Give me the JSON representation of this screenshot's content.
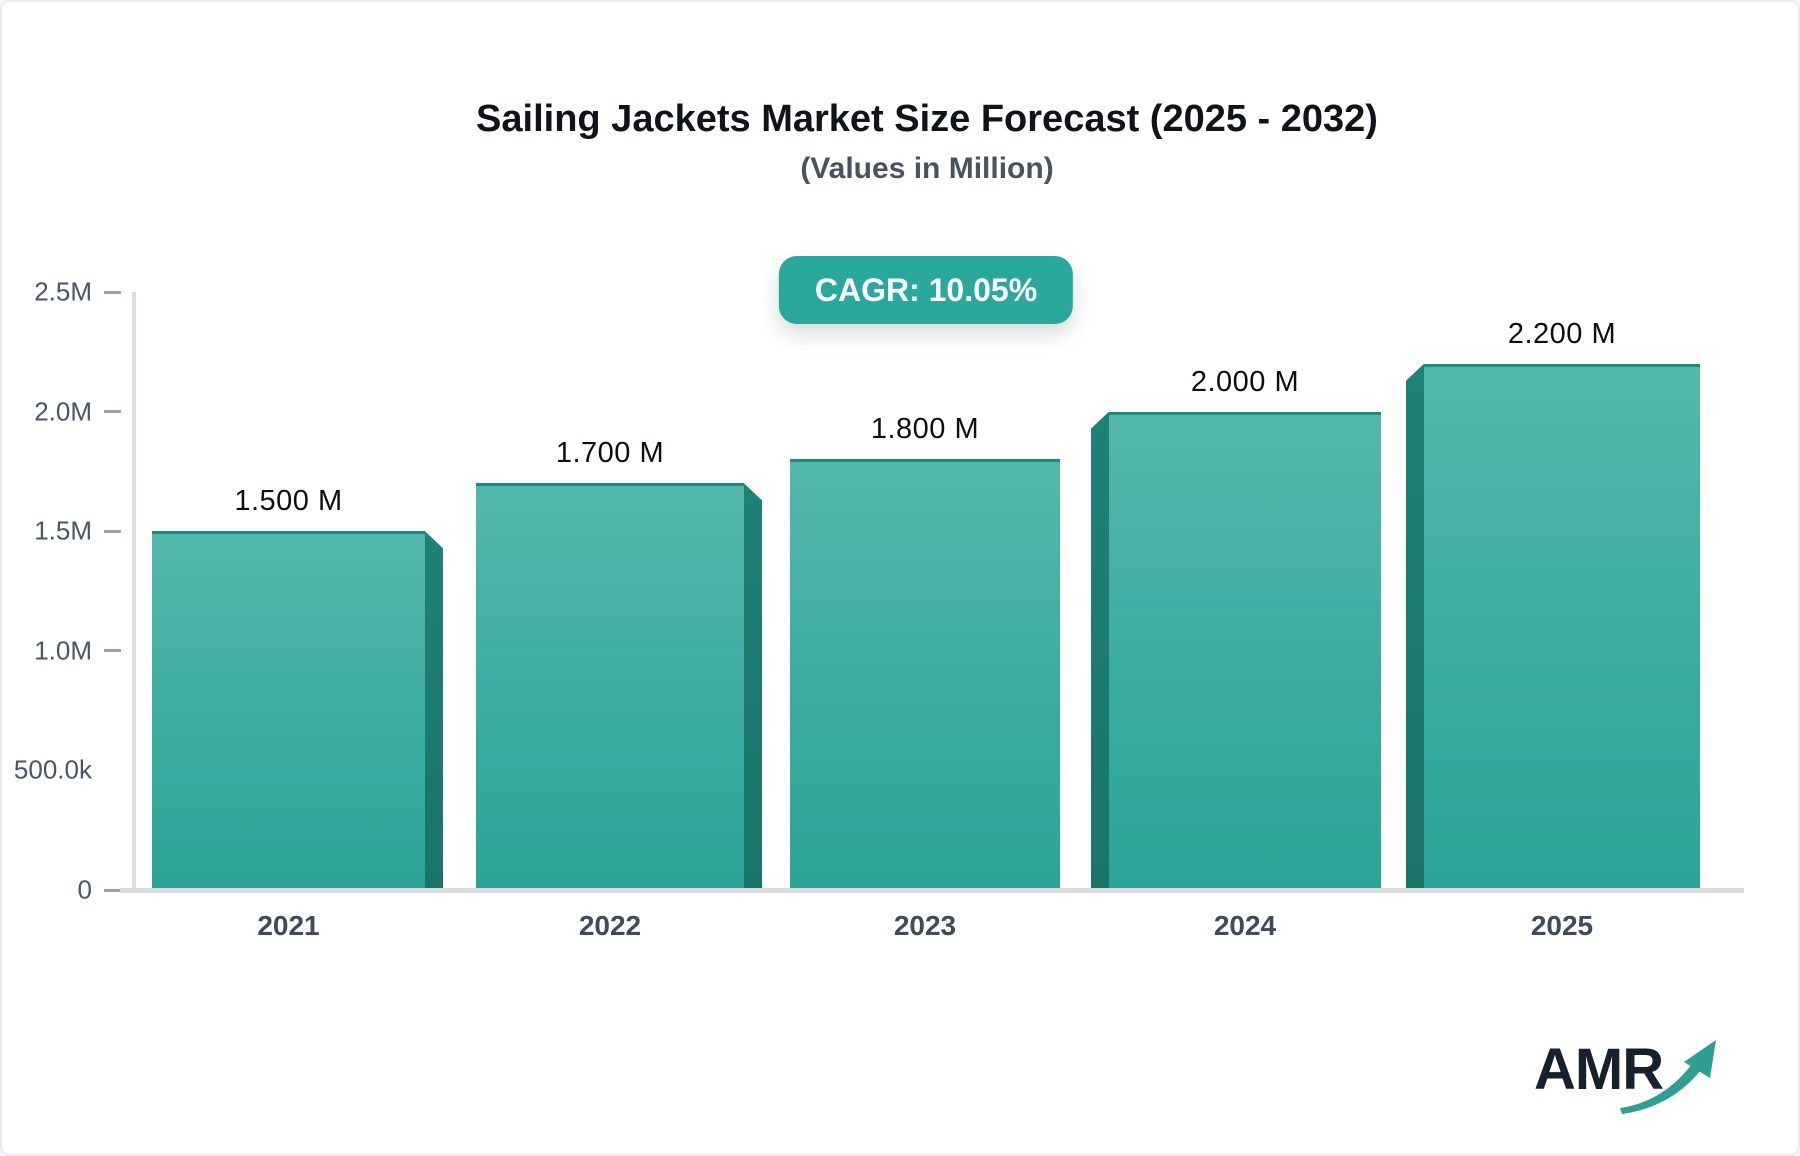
{
  "header": {
    "title": "Sailing Jackets Market Size Forecast (2025 - 2032)",
    "subtitle": "(Values in Million)",
    "cagr_badge": "CAGR: 10.05%"
  },
  "chart_data": {
    "type": "bar",
    "title": "Sailing Jackets Market Size Forecast (2025 - 2032)",
    "subtitle": "(Values in Million)",
    "cagr": "10.05%",
    "categories": [
      "2021",
      "2022",
      "2023",
      "2024",
      "2025"
    ],
    "values": [
      1.5,
      1.7,
      1.8,
      2.0,
      2.2
    ],
    "value_labels": [
      "1.500 M",
      "1.700 M",
      "1.800 M",
      "2.000 M",
      "2.200 M"
    ],
    "unit": "Million",
    "ylim": [
      0,
      2.5
    ],
    "yticks": [
      {
        "label": "2.5M",
        "value": 2.5,
        "dash": true
      },
      {
        "label": "2.0M",
        "value": 2.0,
        "dash": true
      },
      {
        "label": "1.5M",
        "value": 1.5,
        "dash": true
      },
      {
        "label": "1.0M",
        "value": 1.0,
        "dash": true
      },
      {
        "label": "500.0k",
        "value": 0.5,
        "dash": false
      },
      {
        "label": "0",
        "value": 0.0,
        "dash": true
      }
    ],
    "grid": false,
    "legend": false,
    "bar_3d_sides": [
      "right",
      "right",
      "none",
      "left",
      "left"
    ]
  },
  "branding": {
    "logo_text": "AMR"
  },
  "colors": {
    "badge_bg": "#2aa89b",
    "bar_top": "#55b7ab",
    "bar_bottom": "#2aa496",
    "bar_side": "#1e7d71",
    "axis": "#d9dade",
    "tick_label": "#4a5565",
    "logo_text": "#16212b",
    "logo_arrow": "#2f9e93"
  }
}
